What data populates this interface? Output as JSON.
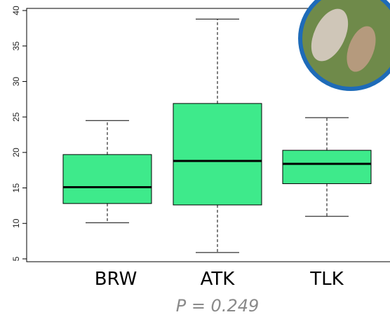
{
  "chart_data": {
    "type": "box",
    "categories": [
      "BRW",
      "ATK",
      "TLK"
    ],
    "boxes": [
      {
        "whisker_low": 10.1,
        "q1": 12.8,
        "median": 15.1,
        "q3": 19.7,
        "whisker_high": 24.5
      },
      {
        "whisker_low": 5.9,
        "q1": 12.6,
        "median": 18.8,
        "q3": 26.9,
        "whisker_high": 38.8
      },
      {
        "whisker_low": 11.0,
        "q1": 15.6,
        "median": 18.4,
        "q3": 20.3,
        "whisker_high": 24.9
      }
    ],
    "color": "#3eea8b",
    "ylim": [
      4.6,
      40.3
    ],
    "yticks": [
      5,
      10,
      15,
      20,
      25,
      30,
      35,
      40
    ],
    "annotation": "P = 0.249"
  }
}
